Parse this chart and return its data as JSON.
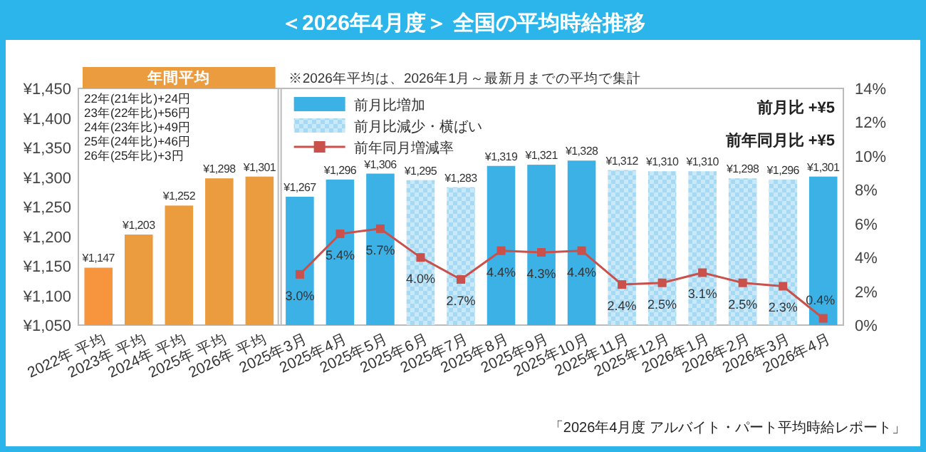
{
  "chart_data": {
    "type": "bar",
    "title": "＜2026年4月度＞ 全国の平均時給推移",
    "categories": [
      "2022年 平均",
      "2023年 平均",
      "2024年 平均",
      "2025年 平均",
      "2026年 平均",
      "2025年3月",
      "2025年4月",
      "2025年5月",
      "2025年6月",
      "2025年7月",
      "2025年8月",
      "2025年9月",
      "2025年10月",
      "2025年11月",
      "2025年12月",
      "2026年1月",
      "2026年2月",
      "2026年3月",
      "2026年4月"
    ],
    "series": [
      {
        "color": "#eb9c3f",
        "colors": [
          "#f7953f",
          "#eb9c3f",
          "#eb9c3f",
          "#eb9c3f",
          "#eb9c3f",
          null,
          null,
          null,
          null,
          null,
          null,
          null,
          null,
          null,
          null,
          null,
          null,
          null,
          null
        ],
        "values": [
          1147,
          1203,
          1252,
          1298,
          1301,
          null,
          null,
          null,
          null,
          null,
          null,
          null,
          null,
          null,
          null,
          null,
          null,
          null,
          null
        ],
        "value_labels": [
          "¥1,147",
          "¥1,203",
          "¥1,252",
          "¥1,298",
          "¥1,301",
          null,
          null,
          null,
          null,
          null,
          null,
          null,
          null,
          null,
          null,
          null,
          null,
          null,
          null
        ]
      },
      {
        "name": "前月比増加",
        "color": "#3cb1e6",
        "values": [
          null,
          null,
          null,
          null,
          null,
          1267,
          1296,
          1306,
          null,
          null,
          1319,
          1321,
          1328,
          null,
          null,
          null,
          null,
          null,
          1301
        ],
        "value_labels": [
          null,
          null,
          null,
          null,
          null,
          "¥1,267",
          "¥1,296",
          "¥1,306",
          null,
          null,
          "¥1,319",
          "¥1,321",
          "¥1,328",
          null,
          null,
          null,
          null,
          null,
          "¥1,301"
        ]
      },
      {
        "name": "前月比減少・横ばい",
        "color": "#a6d9f4",
        "values": [
          null,
          null,
          null,
          null,
          null,
          null,
          null,
          null,
          1295,
          1283,
          null,
          null,
          null,
          1312,
          1310,
          1310,
          1298,
          1296,
          null
        ],
        "value_labels": [
          null,
          null,
          null,
          null,
          null,
          null,
          null,
          null,
          "¥1,295",
          "¥1,283",
          null,
          null,
          null,
          "¥1,312",
          "¥1,310",
          "¥1,310",
          "¥1,298",
          "¥1,296",
          null
        ]
      },
      {
        "name": "前年同月増減率",
        "type": "line",
        "axis": "y2",
        "color": "#c9504b",
        "marker": "square",
        "values": [
          null,
          null,
          null,
          null,
          null,
          3.0,
          5.4,
          5.7,
          4.0,
          2.7,
          4.4,
          4.3,
          4.4,
          2.4,
          2.5,
          3.1,
          2.5,
          2.3,
          0.4
        ],
        "value_labels": [
          null,
          null,
          null,
          null,
          null,
          "3.0%",
          "5.4%",
          "5.7%",
          "4.0%",
          "2.7%",
          "4.4%",
          "4.3%",
          "4.4%",
          "2.4%",
          "2.5%",
          "3.1%",
          "2.5%",
          "2.3%",
          "0.4%"
        ]
      }
    ],
    "ylim": [
      1050,
      1450
    ],
    "yticks": [
      {
        "value": 1050,
        "label": "¥1,050"
      },
      {
        "value": 1100,
        "label": "¥1,100"
      },
      {
        "value": 1150,
        "label": "¥1,150"
      },
      {
        "value": 1200,
        "label": "¥1,200"
      },
      {
        "value": 1250,
        "label": "¥1,250"
      },
      {
        "value": 1300,
        "label": "¥1,300"
      },
      {
        "value": 1350,
        "label": "¥1,350"
      },
      {
        "value": 1400,
        "label": "¥1,400"
      },
      {
        "value": 1450,
        "label": "¥1,450"
      }
    ],
    "y2lim": [
      0,
      14
    ],
    "y2ticks": [
      {
        "value": 0,
        "label": "0%"
      },
      {
        "value": 2,
        "label": "2%"
      },
      {
        "value": 4,
        "label": "4%"
      },
      {
        "value": 6,
        "label": "6%"
      },
      {
        "value": 8,
        "label": "8%"
      },
      {
        "value": 10,
        "label": "10%"
      },
      {
        "value": 12,
        "label": "12%"
      },
      {
        "value": 14,
        "label": "14%"
      }
    ],
    "legend": "top left",
    "grid": false,
    "annotations": [
      "年間平均",
      "※2026年平均は、2026年1月～最新月までの平均で集計",
      "22年(21年比)+24円",
      "23年(22年比)+56円",
      "24年(23年比)+49円",
      "25年(24年比)+46円",
      "26年(25年比)+3円",
      "前月比 +¥5",
      "前年同月比 +¥5",
      "「2026年4月度 アルバイト・パート平均時給レポート」"
    ]
  }
}
